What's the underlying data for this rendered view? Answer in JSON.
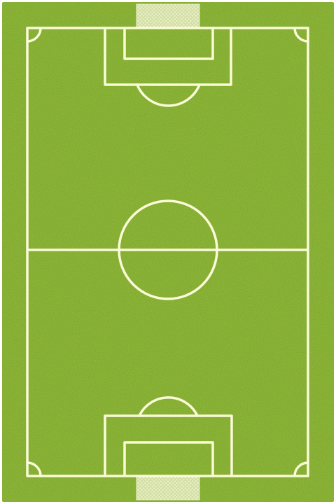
{
  "image": {
    "subject": "soccer-field-rug",
    "colors": {
      "grass": "#94c13a",
      "grass_dark": "#7fb02c",
      "lines": "#fbfbd8",
      "net": "#e8efc4",
      "background": "#ffffff"
    }
  }
}
